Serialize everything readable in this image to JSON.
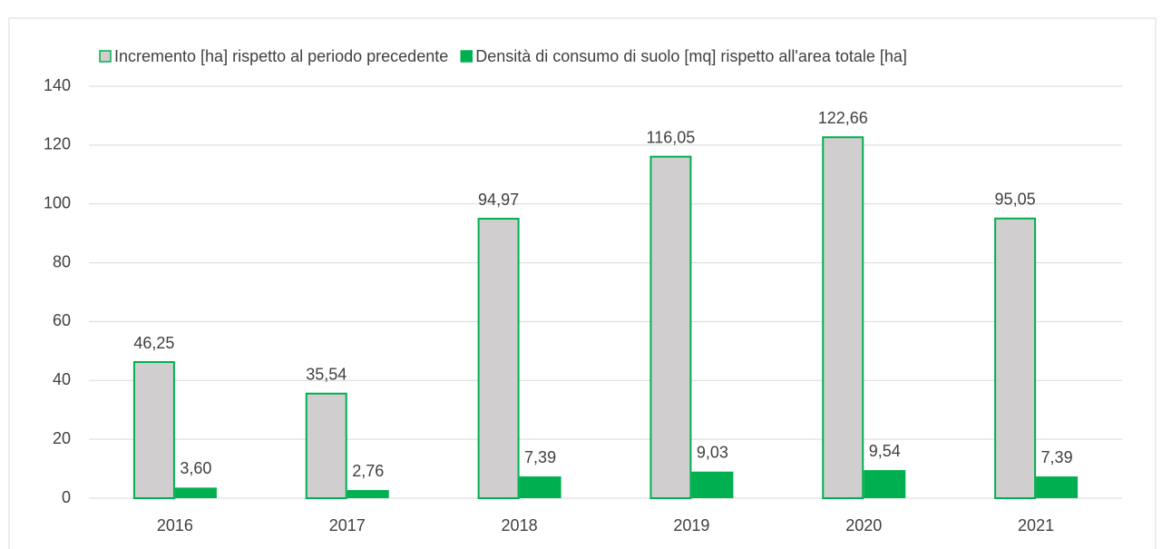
{
  "chart_data": {
    "type": "bar",
    "categories": [
      "2016",
      "2017",
      "2018",
      "2019",
      "2020",
      "2021"
    ],
    "series": [
      {
        "name": "Incremento [ha] rispetto al periodo precedente",
        "color": "#d0cece",
        "edge_color": "#00b050",
        "values": [
          46.25,
          35.54,
          94.97,
          116.05,
          122.66,
          95.05
        ],
        "value_labels": [
          "46,25",
          "35,54",
          "94,97",
          "116,05",
          "122,66",
          "95,05"
        ]
      },
      {
        "name": "Densità di consumo di suolo [mq] rispetto all'area totale [ha]",
        "color": "#00b050",
        "values": [
          3.6,
          2.76,
          7.39,
          9.03,
          9.54,
          7.39
        ],
        "value_labels": [
          "3,60",
          "2,76",
          "7,39",
          "9,03",
          "9,54",
          "7,39"
        ]
      }
    ],
    "ylim": [
      0,
      140
    ],
    "yticks": [
      0,
      20,
      40,
      60,
      80,
      100,
      120,
      140
    ],
    "grid": true,
    "legend": "top"
  }
}
